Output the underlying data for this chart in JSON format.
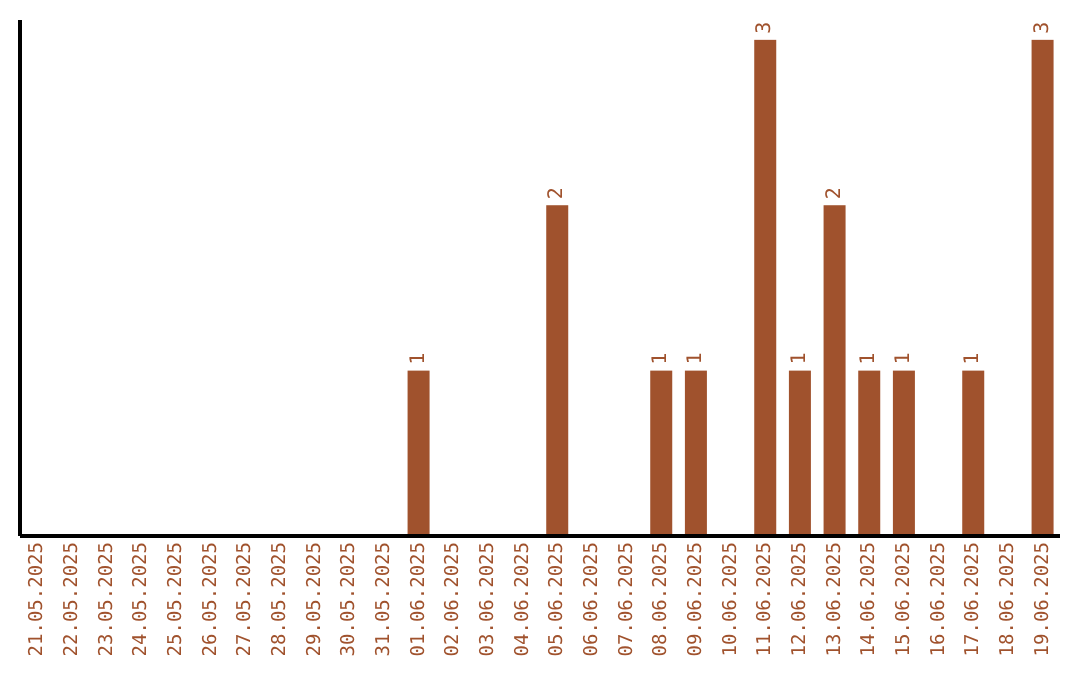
{
  "chart_data": {
    "type": "bar",
    "categories": [
      "21.05.2025",
      "22.05.2025",
      "23.05.2025",
      "24.05.2025",
      "25.05.2025",
      "26.05.2025",
      "27.05.2025",
      "28.05.2025",
      "29.05.2025",
      "30.05.2025",
      "31.05.2025",
      "01.06.2025",
      "02.06.2025",
      "03.06.2025",
      "04.06.2025",
      "05.06.2025",
      "06.06.2025",
      "07.06.2025",
      "08.06.2025",
      "09.06.2025",
      "10.06.2025",
      "11.06.2025",
      "12.06.2025",
      "13.06.2025",
      "14.06.2025",
      "15.06.2025",
      "16.06.2025",
      "17.06.2025",
      "18.06.2025",
      "19.06.2025"
    ],
    "values": [
      0,
      0,
      0,
      0,
      0,
      0,
      0,
      0,
      0,
      0,
      0,
      1,
      0,
      0,
      0,
      2,
      0,
      0,
      1,
      1,
      0,
      3,
      1,
      2,
      1,
      1,
      0,
      1,
      0,
      3
    ],
    "value_labels": [
      null,
      null,
      null,
      null,
      null,
      null,
      null,
      null,
      null,
      null,
      null,
      "1",
      null,
      null,
      null,
      "2",
      null,
      null,
      "1",
      "1",
      null,
      "3",
      "1",
      "2",
      "1",
      "1",
      null,
      "1",
      null,
      "3"
    ],
    "color": "#a0522d",
    "tick_labels": "x"
  }
}
